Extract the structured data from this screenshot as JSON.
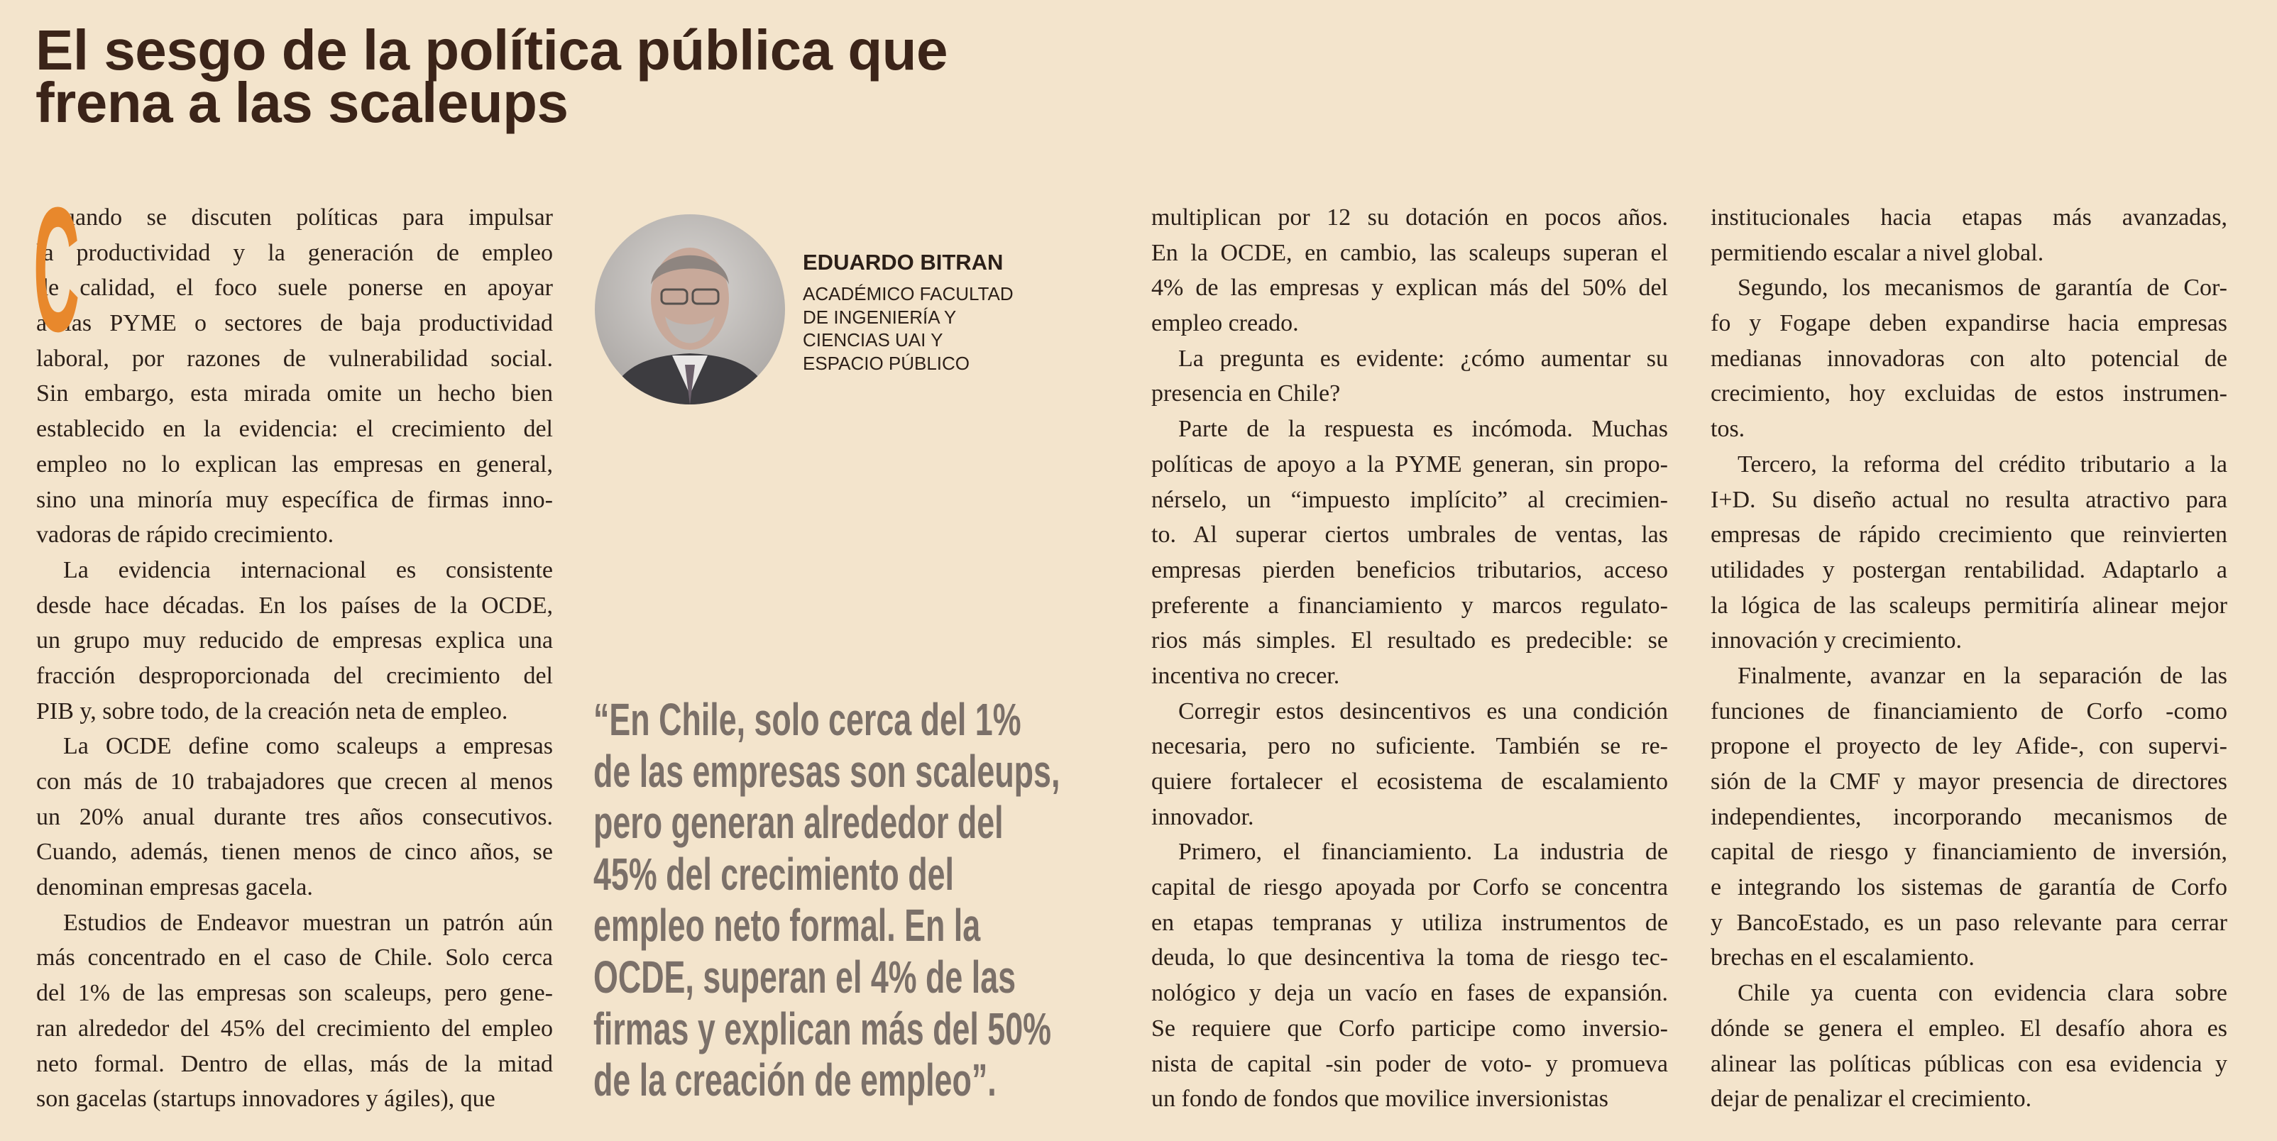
{
  "header": {
    "title": [
      "El sesgo de la política pública que",
      "frena a las scaleups"
    ]
  },
  "author": {
    "name": "EDUARDO BITRAN",
    "affiliation": [
      "ACADÉMICO FACULTAD",
      "DE INGENIERÍA Y",
      "CIENCIAS UAI Y",
      "ESPACIO PÚBLICO"
    ]
  },
  "quote": [
    "“En Chile, solo cerca del 1%",
    "de las empresas son scaleups,",
    "pero generan alrededor del",
    "45% del crecimiento del",
    "empleo neto formal. En la",
    "OCDE, superan el 4% de las",
    "firmas y explican más del 50%",
    "de la creación de empleo”."
  ],
  "columns": [
    {
      "dropcap": "C",
      "paragraphs": [
        [
          "uando se discuten políticas para impulsar",
          "la productividad y la generación de empleo",
          "de calidad, el foco suele ponerse en apoyar",
          "a las PYME o sectores de baja productividad",
          "laboral, por razones de vulnerabilidad social.",
          "Sin embargo, esta mirada omite un hecho bien",
          "establecido en la evidencia: el crecimiento del",
          "empleo no lo explican las empresas en general,",
          "sino una minoría muy específica de firmas inno-",
          "vadoras de rápido crecimiento."
        ],
        [
          "La evidencia internacional es consistente",
          "desde hace décadas. En los países de la OCDE,",
          "un grupo muy reducido de empresas explica una",
          "fracción desproporcionada del crecimiento del",
          "PIB y, sobre todo, de la creación neta de empleo."
        ],
        [
          "La OCDE define como scaleups a empresas",
          "con más de 10 trabajadores que crecen al menos",
          "un 20% anual durante tres años consecutivos.",
          "Cuando, además, tienen menos de cinco años, se",
          "denominan empresas gacela."
        ],
        [
          "Estudios de Endeavor muestran un patrón aún",
          "más concentrado en el caso de Chile. Solo cerca",
          "del 1% de las empresas son scaleups, pero gene-",
          "ran alrededor del 45% del crecimiento del empleo",
          "neto formal. Dentro de ellas, más de la mitad",
          "son gacelas (startups innovadores y ágiles), que"
        ]
      ]
    },
    {
      "paragraphs": [
        [
          "multiplican por 12 su dotación en pocos años.",
          "En la OCDE, en cambio, las scaleups superan el",
          "4% de las empresas y explican más del 50% del",
          "empleo creado."
        ],
        [
          "La pregunta es evidente: ¿cómo aumentar su",
          "presencia en Chile?"
        ],
        [
          "Parte de la respuesta es incómoda. Muchas",
          "políticas de apoyo a la PYME generan, sin propo-",
          "nérselo, un “impuesto implícito” al crecimien-",
          "to. Al superar ciertos umbrales de ventas, las",
          "empresas pierden beneficios tributarios, acceso",
          "preferente a financiamiento y marcos regulato-",
          "rios más simples. El resultado es predecible: se",
          "incentiva no crecer."
        ],
        [
          "Corregir estos desincentivos es una condición",
          "necesaria, pero no suficiente. También se re-",
          "quiere fortalecer el ecosistema de escalamiento",
          "innovador."
        ],
        [
          "Primero, el financiamiento. La industria de",
          "capital de riesgo apoyada por Corfo se concentra",
          "en etapas tempranas y utiliza instrumentos de",
          "deuda, lo que desincentiva la toma de riesgo tec-",
          "nológico y deja un vacío en fases de expansión.",
          "Se requiere que Corfo participe como inversio-",
          "nista de capital -sin poder de voto- y promueva",
          "un fondo de fondos que movilice inversionistas"
        ]
      ]
    },
    {
      "paragraphs": [
        [
          "institucionales hacia etapas más avanzadas,",
          "permitiendo escalar a nivel global."
        ],
        [
          "Segundo, los mecanismos de garantía de Cor-",
          "fo y Fogape deben expandirse hacia empresas",
          "medianas innovadoras con alto potencial de",
          "crecimiento, hoy excluidas de estos instrumen-",
          "tos."
        ],
        [
          "Tercero, la reforma del crédito tributario a la",
          "I+D. Su diseño actual no resulta atractivo para",
          "empresas de rápido crecimiento que reinvierten",
          "utilidades y postergan rentabilidad. Adaptarlo a",
          "la lógica de las scaleups permitiría alinear mejor",
          "innovación y crecimiento."
        ],
        [
          "Finalmente, avanzar en la separación de las",
          "funciones de financiamiento de Corfo -como",
          "propone el proyecto de ley Afide-, con supervi-",
          "sión de la CMF y mayor presencia de directores",
          "independientes, incorporando mecanismos de",
          "capital de riesgo y financiamiento de inversión,",
          "e integrando los sistemas de garantía de Corfo",
          "y BancoEstado, es un paso relevante para cerrar",
          "brechas en el escalamiento."
        ],
        [
          "Chile ya cuenta con evidencia clara sobre",
          "dónde se genera el empleo. El desafío ahora es",
          "alinear las políticas públicas con esa evidencia y",
          "dejar de penalizar el crecimiento."
        ]
      ]
    }
  ]
}
